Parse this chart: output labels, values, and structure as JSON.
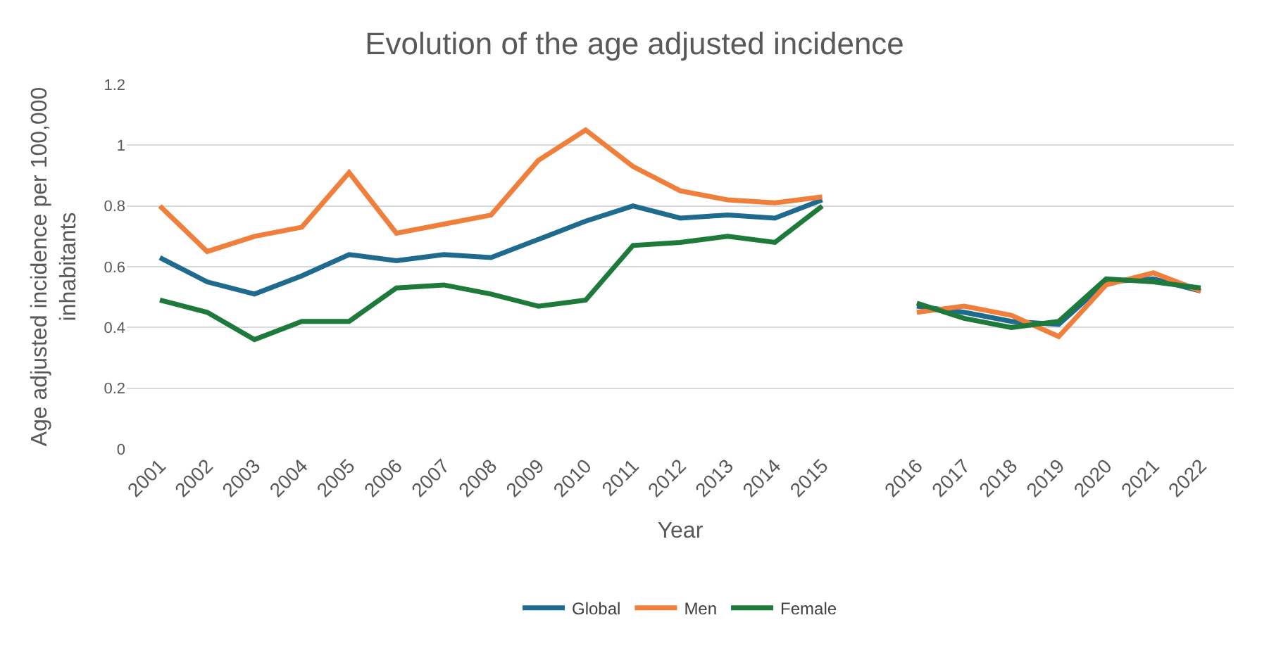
{
  "chart_data": {
    "type": "line",
    "title": "Evolution of the age adjusted incidence",
    "xlabel": "Year",
    "ylabel": "Age adjusted incidence per 100,000 inhabitants",
    "categories": [
      "2001",
      "2002",
      "2003",
      "2004",
      "2005",
      "2006",
      "2007",
      "2008",
      "2009",
      "2010",
      "2011",
      "2012",
      "2013",
      "2014",
      "2015",
      null,
      "2016",
      "2017",
      "2018",
      "2019",
      "2020",
      "2021",
      "2022"
    ],
    "series": [
      {
        "name": "Global",
        "color": "#1f6b8e",
        "values": [
          0.63,
          0.55,
          0.51,
          0.57,
          0.64,
          0.62,
          0.64,
          0.63,
          0.69,
          0.75,
          0.8,
          0.76,
          0.77,
          0.76,
          0.82,
          null,
          0.47,
          0.45,
          0.42,
          0.41,
          0.55,
          0.56,
          0.52
        ]
      },
      {
        "name": "Men",
        "color": "#f07f3c",
        "values": [
          0.8,
          0.65,
          0.7,
          0.73,
          0.91,
          0.71,
          0.74,
          0.77,
          0.95,
          1.05,
          0.93,
          0.85,
          0.82,
          0.81,
          0.83,
          null,
          0.45,
          0.47,
          0.44,
          0.37,
          0.54,
          0.58,
          0.52
        ]
      },
      {
        "name": "Female",
        "color": "#1e7a3a",
        "values": [
          0.49,
          0.45,
          0.36,
          0.42,
          0.42,
          0.53,
          0.54,
          0.51,
          0.47,
          0.49,
          0.67,
          0.68,
          0.7,
          0.68,
          0.8,
          null,
          0.48,
          0.43,
          0.4,
          0.42,
          0.56,
          0.55,
          0.53
        ]
      }
    ],
    "ylim": [
      0,
      1.2
    ],
    "yticks": [
      0,
      0.2,
      0.4,
      0.6,
      0.8,
      1,
      1.2
    ],
    "grid": "y",
    "legend": "bottom",
    "marker": "none",
    "line_style": "solid"
  }
}
